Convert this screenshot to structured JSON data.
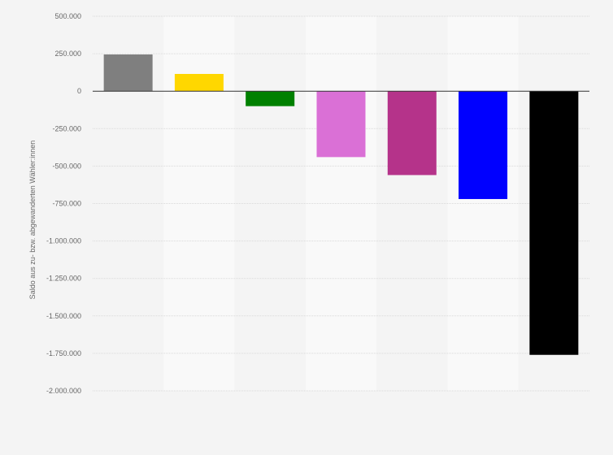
{
  "chart_data": {
    "type": "bar",
    "title": "",
    "xlabel": "",
    "ylabel": "Saldo aus zu- bzw. abgewanderten Wähler:innen",
    "ylim": [
      -2000000,
      500000
    ],
    "yticks": [
      500000,
      250000,
      0,
      -250000,
      -500000,
      -750000,
      -1000000,
      -1250000,
      -1500000,
      -1750000,
      -2000000
    ],
    "ytick_labels": [
      "500.000",
      "250.000",
      "0",
      "-250.000",
      "-500.000",
      "-750.000",
      "-1.000.000",
      "-1.250.000",
      "-1.500.000",
      "-1.750.000",
      "-2.000.000"
    ],
    "grid": true,
    "legend": "none",
    "values": [
      245000,
      115000,
      -100000,
      -440000,
      -560000,
      -720000,
      -1760000
    ],
    "colors": [
      "#7f7f7f",
      "#ffd700",
      "#008000",
      "#da70d6",
      "#b5338a",
      "#0000ff",
      "#000000"
    ]
  }
}
